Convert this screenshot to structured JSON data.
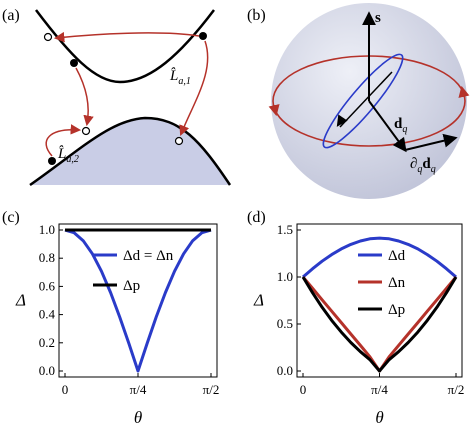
{
  "panel_labels": [
    "(a)",
    "(b)",
    "(c)",
    "(d)"
  ],
  "panel_a": {
    "operator_upper": "L̂",
    "operator_upper_sub": "a,1",
    "operator_lower": "L̂",
    "operator_lower_sub": "a,2"
  },
  "panel_b": {
    "vector_s": "s",
    "vector_d": "d",
    "vector_d_sub": "q",
    "derivative_label": "∂",
    "derivative_sub": "q",
    "derivative_vec": "d",
    "derivative_vec_sub": "q"
  },
  "colors": {
    "blue": "#2a3bc9",
    "red": "#b5322a",
    "black": "#000000",
    "shade": "#c9cde6"
  },
  "chart_data": [
    {
      "type": "line",
      "panel": "(c)",
      "xlabel": "θ",
      "ylabel": "Δ",
      "xlim": [
        0,
        1.5708
      ],
      "ylim": [
        0,
        1.0
      ],
      "xticks": [
        "0",
        "π/4",
        "π/2"
      ],
      "yticks": [
        "0.0",
        "0.2",
        "0.4",
        "0.6",
        "0.8",
        "1.0"
      ],
      "legend": "top-right",
      "series": [
        {
          "name": "Δd = Δn",
          "color": "#2a3bc9",
          "x": [
            0,
            0.0982,
            0.1963,
            0.2945,
            0.3927,
            0.4909,
            0.589,
            0.6872,
            0.7854,
            0.8836,
            0.9817,
            1.0799,
            1.1781,
            1.2763,
            1.3744,
            1.4726,
            1.5708
          ],
          "y": [
            1.0,
            0.981,
            0.924,
            0.831,
            0.707,
            0.556,
            0.383,
            0.195,
            0.0,
            0.195,
            0.383,
            0.556,
            0.707,
            0.831,
            0.924,
            0.981,
            1.0
          ]
        },
        {
          "name": "Δp",
          "color": "#000000",
          "x": [
            0,
            1.5708
          ],
          "y": [
            1.0,
            1.0
          ]
        }
      ]
    },
    {
      "type": "line",
      "panel": "(d)",
      "xlabel": "θ",
      "ylabel": "Δ",
      "xlim": [
        0,
        1.5708
      ],
      "ylim": [
        0,
        1.5
      ],
      "xticks": [
        "0",
        "π/4",
        "π/2"
      ],
      "yticks": [
        "0.0",
        "0.5",
        "1.0",
        "1.5"
      ],
      "legend": "top-right",
      "series": [
        {
          "name": "Δd",
          "color": "#2a3bc9",
          "x": [
            0,
            0.0982,
            0.1963,
            0.2945,
            0.3927,
            0.4909,
            0.589,
            0.6872,
            0.7854,
            0.8836,
            0.9817,
            1.0799,
            1.1781,
            1.2763,
            1.3744,
            1.4726,
            1.5708
          ],
          "y": [
            1.0,
            1.0886,
            1.1685,
            1.2388,
            1.2985,
            1.3468,
            1.3832,
            1.4066,
            1.4142,
            1.4066,
            1.3832,
            1.3468,
            1.2985,
            1.2388,
            1.1685,
            1.0886,
            1.0
          ]
        },
        {
          "name": "Δn",
          "color": "#b5322a",
          "x": [
            0,
            0.0982,
            0.1963,
            0.2945,
            0.3927,
            0.4909,
            0.589,
            0.6872,
            0.7854,
            0.8836,
            0.9817,
            1.0799,
            1.1781,
            1.2763,
            1.3744,
            1.4726,
            1.5708
          ],
          "y": [
            1.0,
            0.8787,
            0.7573,
            0.636,
            0.5147,
            0.3933,
            0.272,
            0.1507,
            0.0,
            0.1507,
            0.272,
            0.3933,
            0.5147,
            0.636,
            0.7573,
            0.8787,
            1.0
          ]
        },
        {
          "name": "Δp",
          "color": "#000000",
          "x": [
            0,
            0.0982,
            0.1963,
            0.2945,
            0.3927,
            0.4909,
            0.589,
            0.6872,
            0.7854,
            0.8836,
            0.9817,
            1.0799,
            1.1781,
            1.2763,
            1.3744,
            1.4726,
            1.5708
          ],
          "y": [
            1.0,
            0.8314,
            0.6777,
            0.5388,
            0.4142,
            0.3033,
            0.2055,
            0.1202,
            0.0,
            0.1202,
            0.2055,
            0.3033,
            0.4142,
            0.5388,
            0.6777,
            0.8314,
            1.0
          ]
        }
      ]
    }
  ]
}
